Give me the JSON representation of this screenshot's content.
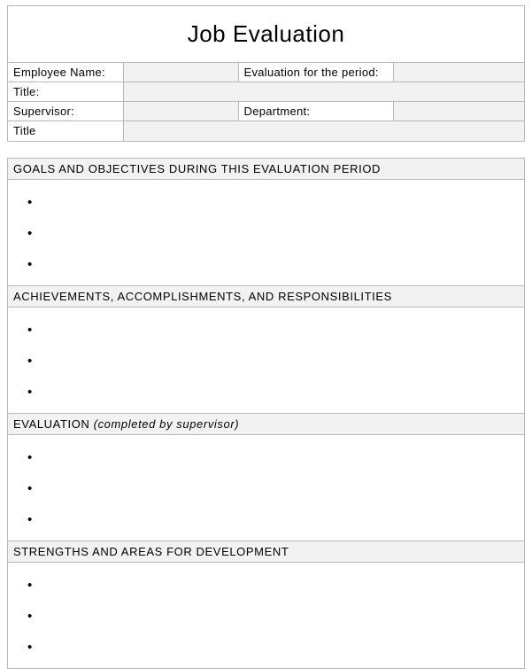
{
  "title": "Job Evaluation",
  "colors": {
    "border": "#b8b8b8",
    "shaded_bg": "#f2f2f2",
    "page_bg": "#ffffff",
    "text": "#000000"
  },
  "typography": {
    "title_fontsize": 26,
    "label_fontsize": 13,
    "section_header_fontsize": 13,
    "font_family": "Arial, sans-serif"
  },
  "info": {
    "employee_name_label": "Employee Name:",
    "employee_name_value": "",
    "evaluation_period_label": "Evaluation  for the period:",
    "evaluation_period_value": "",
    "title_label": "Title:",
    "title_value": "",
    "supervisor_label": "Supervisor:",
    "supervisor_value": "",
    "department_label": "Department:",
    "department_value": "",
    "title2_label": "Title",
    "title2_value": ""
  },
  "sections": [
    {
      "header": "GOALS AND OBJECTIVES  DURING THIS EVALUATION  PERIOD",
      "header_suffix": "",
      "bullets": [
        "",
        "",
        ""
      ]
    },
    {
      "header": "ACHIEVEMENTS,   ACCOMPLISHMENTS,   AND RESPONSIBILITIES",
      "header_suffix": "",
      "bullets": [
        "",
        "",
        ""
      ]
    },
    {
      "header": "EVALUATION  ",
      "header_suffix": "(completed by supervisor)",
      "bullets": [
        "",
        "",
        ""
      ]
    },
    {
      "header": "STRENGTHS  AND AREAS  FOR DEVELOPMENT",
      "header_suffix": "",
      "bullets": [
        "",
        "",
        ""
      ]
    }
  ]
}
